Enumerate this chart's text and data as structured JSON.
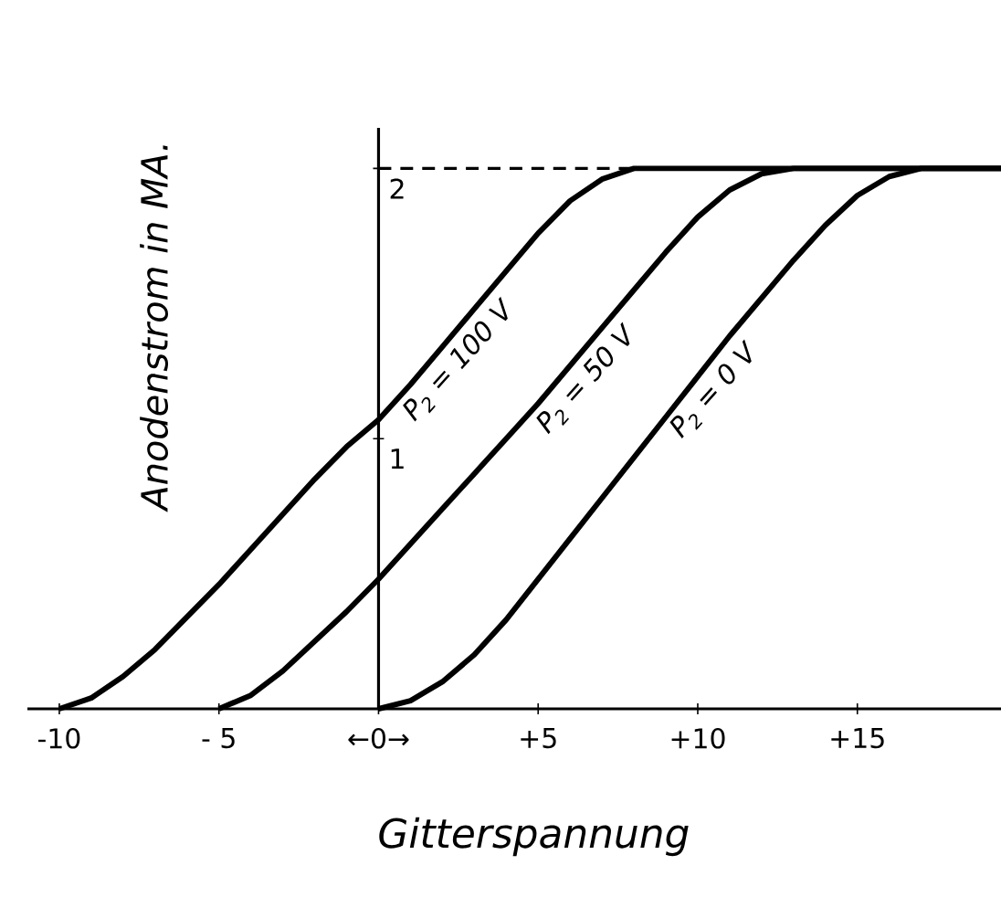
{
  "chart_data": {
    "type": "line",
    "xlabel": "Gitterspannung",
    "ylabel": "Anodenstrom in MA.",
    "xlim": [
      -11,
      19.5
    ],
    "ylim": [
      0,
      2.15
    ],
    "xticks": [
      {
        "value": -10,
        "label": "-10"
      },
      {
        "value": -5,
        "label": "- 5"
      },
      {
        "value": 0,
        "label": "←0→"
      },
      {
        "value": 5,
        "label": "+5"
      },
      {
        "value": 10,
        "label": "+10"
      },
      {
        "value": 15,
        "label": "+15"
      }
    ],
    "yticks": [
      1,
      2
    ],
    "grid": false,
    "legend": false,
    "ref_lines": [
      {
        "axis": "y",
        "value": 2,
        "line_style": "dashed",
        "color": "#000000"
      }
    ],
    "series": [
      {
        "name": "P$_{2}$ = 100 V",
        "color": "#000000",
        "x": [
          -10,
          -9,
          -8,
          -7,
          -6,
          -5,
          -4,
          -3,
          -2,
          -1,
          0,
          1,
          2,
          3,
          4,
          5,
          6,
          7,
          8,
          19.5
        ],
        "values": [
          0,
          0.04,
          0.12,
          0.22,
          0.34,
          0.46,
          0.59,
          0.72,
          0.85,
          0.97,
          1.07,
          1.2,
          1.34,
          1.48,
          1.62,
          1.76,
          1.88,
          1.96,
          2.0,
          2.0
        ]
      },
      {
        "name": "P$_{2}$ = 50 V",
        "color": "#000000",
        "x": [
          -5,
          -4,
          -3,
          -2,
          -1,
          0,
          1,
          2,
          3,
          4,
          5,
          6,
          7,
          8,
          9,
          10,
          11,
          12,
          13,
          19.5
        ],
        "values": [
          0,
          0.05,
          0.14,
          0.25,
          0.36,
          0.48,
          0.61,
          0.74,
          0.87,
          1.0,
          1.13,
          1.27,
          1.41,
          1.55,
          1.69,
          1.82,
          1.92,
          1.98,
          2.0,
          2.0
        ]
      },
      {
        "name": "P$_{2}$ = 0 V",
        "color": "#000000",
        "x": [
          0,
          1,
          2,
          3,
          4,
          5,
          6,
          7,
          8,
          9,
          10,
          11,
          12,
          13,
          14,
          15,
          16,
          17,
          19.5
        ],
        "values": [
          0,
          0.03,
          0.1,
          0.2,
          0.33,
          0.48,
          0.63,
          0.78,
          0.93,
          1.08,
          1.23,
          1.38,
          1.52,
          1.66,
          1.79,
          1.9,
          1.97,
          2.0,
          2.0
        ]
      }
    ]
  }
}
